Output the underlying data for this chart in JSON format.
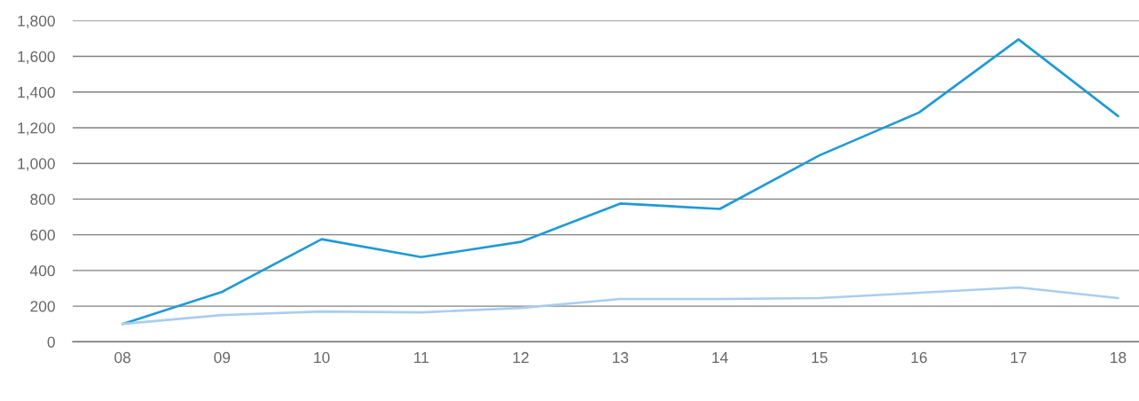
{
  "chart_data": {
    "type": "line",
    "categories": [
      "08",
      "09",
      "10",
      "11",
      "12",
      "13",
      "14",
      "15",
      "16",
      "17",
      "18"
    ],
    "series": [
      {
        "color": "#1f9ad6",
        "values": [
          100,
          280,
          575,
          475,
          560,
          775,
          745,
          1045,
          1285,
          1695,
          1265
        ]
      },
      {
        "color": "#a9cdef",
        "values": [
          100,
          150,
          170,
          165,
          190,
          240,
          240,
          245,
          275,
          305,
          245
        ]
      }
    ],
    "ylim": [
      0,
      1800
    ],
    "yticks": [
      0,
      200,
      400,
      600,
      800,
      {
        "value": 1000,
        "label": "1,000"
      },
      {
        "value": 1200,
        "label": "1,200"
      },
      {
        "value": 1400,
        "label": "1,400"
      },
      {
        "value": 1600,
        "label": "1,600"
      },
      {
        "value": 1800,
        "label": "1,800"
      }
    ],
    "grid": "y",
    "marker": "none",
    "line_style": "solid"
  }
}
